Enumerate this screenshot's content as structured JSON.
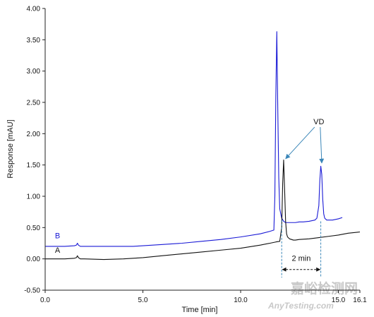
{
  "chart_data": {
    "type": "line",
    "title": "",
    "xlabel": "Time [min]",
    "ylabel": "Response [mAU]",
    "xlim": [
      0,
      16.1
    ],
    "ylim": [
      -0.5,
      4.0
    ],
    "x_ticks": [
      {
        "value": 0,
        "label": "0.0"
      },
      {
        "value": 5,
        "label": "5.0"
      },
      {
        "value": 10,
        "label": "10.0"
      },
      {
        "value": 15,
        "label": "15.0"
      },
      {
        "value": 16.1,
        "label": "16.1"
      }
    ],
    "y_ticks": [
      {
        "value": 4.0,
        "label": "4.00"
      },
      {
        "value": 3.5,
        "label": "3.50"
      },
      {
        "value": 3.0,
        "label": "3.00"
      },
      {
        "value": 2.5,
        "label": "2.50"
      },
      {
        "value": 2.0,
        "label": "2.00"
      },
      {
        "value": 1.5,
        "label": "1.50"
      },
      {
        "value": 1.0,
        "label": "1.00"
      },
      {
        "value": 0.5,
        "label": "0.50"
      },
      {
        "value": 0.0,
        "label": "0.00"
      },
      {
        "value": -0.5,
        "label": "-0.50"
      }
    ],
    "grid": false,
    "series": [
      {
        "name": "B",
        "color": "#1a1ad6",
        "x": [
          0.0,
          1.0,
          1.5,
          1.6,
          1.65,
          1.7,
          1.8,
          2.0,
          3.0,
          4.0,
          4.5,
          5.0,
          6.0,
          7.0,
          8.0,
          9.0,
          10.0,
          11.0,
          11.5,
          11.7,
          11.75,
          11.8,
          11.85,
          11.9,
          11.95,
          12.0,
          12.1,
          12.2,
          12.3,
          12.5,
          12.8,
          13.0,
          13.2,
          13.5,
          13.8,
          13.9,
          14.0,
          14.05,
          14.1,
          14.15,
          14.2,
          14.25,
          14.3,
          14.4,
          14.5,
          14.7,
          15.0,
          15.2
        ],
        "y": [
          0.2,
          0.2,
          0.21,
          0.22,
          0.25,
          0.22,
          0.2,
          0.2,
          0.2,
          0.2,
          0.2,
          0.21,
          0.23,
          0.25,
          0.28,
          0.31,
          0.35,
          0.4,
          0.44,
          0.46,
          1.0,
          2.6,
          3.63,
          2.4,
          1.3,
          0.8,
          0.65,
          0.6,
          0.58,
          0.58,
          0.58,
          0.59,
          0.59,
          0.6,
          0.62,
          0.65,
          0.85,
          1.25,
          1.48,
          1.35,
          0.95,
          0.72,
          0.65,
          0.62,
          0.62,
          0.62,
          0.64,
          0.66
        ]
      },
      {
        "name": "A",
        "color": "#111111",
        "x": [
          0.0,
          1.0,
          1.5,
          1.6,
          1.65,
          1.7,
          1.8,
          2.0,
          3.0,
          4.0,
          5.0,
          6.0,
          7.0,
          8.0,
          9.0,
          10.0,
          11.0,
          11.5,
          11.8,
          12.0,
          12.1,
          12.15,
          12.2,
          12.25,
          12.3,
          12.35,
          12.4,
          12.5,
          12.6,
          12.7,
          12.8,
          13.0,
          13.5,
          14.0,
          14.5,
          15.0,
          15.5,
          16.1
        ],
        "y": [
          0.0,
          0.0,
          0.01,
          0.02,
          0.05,
          0.02,
          0.0,
          0.0,
          -0.01,
          0.0,
          0.02,
          0.05,
          0.08,
          0.11,
          0.14,
          0.17,
          0.22,
          0.25,
          0.27,
          0.28,
          0.5,
          1.2,
          1.58,
          1.1,
          0.6,
          0.4,
          0.35,
          0.32,
          0.31,
          0.3,
          0.3,
          0.31,
          0.32,
          0.34,
          0.36,
          0.38,
          0.41,
          0.43
        ]
      }
    ],
    "annotations": [
      {
        "text": "VD",
        "x": 14.0,
        "y": 2.15
      },
      {
        "text": "2 min",
        "x": 13.2,
        "y": -0.03
      },
      {
        "text": "B",
        "x": 0.5,
        "y": 0.33
      },
      {
        "text": "A",
        "x": 0.5,
        "y": 0.1
      }
    ]
  },
  "watermark": {
    "cn": "嘉峪检测网",
    "en": "AnyTesting.com"
  }
}
